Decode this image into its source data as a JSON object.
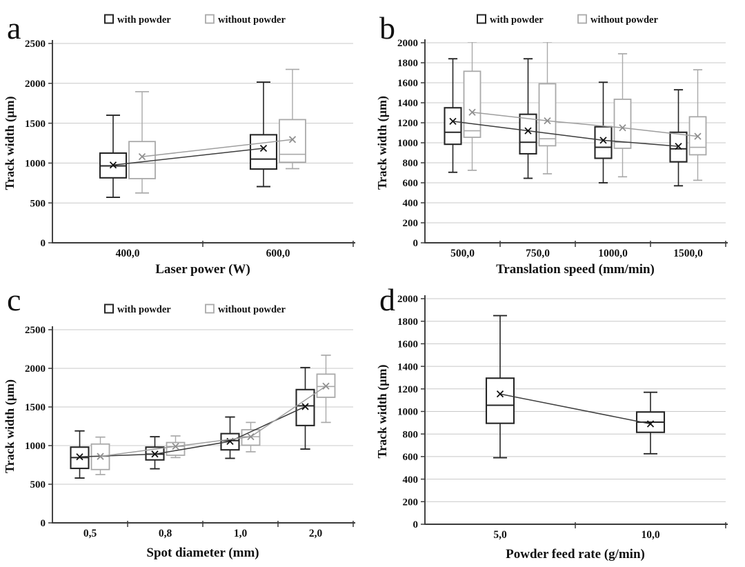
{
  "figure": {
    "background": "#ffffff",
    "grid_color": "#c8c8c8",
    "axis_color": "#3a3a3a",
    "series_colors": {
      "with_powder": "#262626",
      "without_powder": "#a9a9a9"
    }
  },
  "chart_data": [
    {
      "panel": "a",
      "type": "boxplot",
      "xlabel": "Laser power (W)",
      "ylabel": "Track width (µm)",
      "ylim": [
        0,
        2500
      ],
      "ytick_step": 500,
      "grid": true,
      "legend_position": "top-center",
      "categories": [
        "400,0",
        "600,0"
      ],
      "legend": [
        {
          "label": "with powder",
          "color": "#262626"
        },
        {
          "label": "without powder",
          "color": "#a9a9a9"
        }
      ],
      "series": [
        {
          "name": "with powder",
          "color": "#262626",
          "boxes": [
            {
              "min": 570,
              "q1": 815,
              "median": 965,
              "q3": 1125,
              "max": 1600,
              "mean": 975
            },
            {
              "min": 705,
              "q1": 925,
              "median": 1050,
              "q3": 1355,
              "max": 2015,
              "mean": 1185
            }
          ]
        },
        {
          "name": "without powder",
          "color": "#a9a9a9",
          "boxes": [
            {
              "min": 625,
              "q1": 805,
              "median": 1000,
              "q3": 1270,
              "max": 1895,
              "mean": 1080
            },
            {
              "min": 930,
              "q1": 1010,
              "median": 1110,
              "q3": 1545,
              "max": 2175,
              "mean": 1295
            }
          ]
        }
      ]
    },
    {
      "panel": "b",
      "type": "boxplot",
      "xlabel": "Translation speed (mm/min)",
      "ylabel": "Track width (µm)",
      "ylim": [
        0,
        2000
      ],
      "ytick_step": 200,
      "grid": true,
      "legend_position": "top-center",
      "categories": [
        "500,0",
        "750,0",
        "1000,0",
        "1500,0"
      ],
      "legend": [
        {
          "label": "with powder",
          "color": "#262626"
        },
        {
          "label": "without powder",
          "color": "#a9a9a9"
        }
      ],
      "series": [
        {
          "name": "with powder",
          "color": "#262626",
          "boxes": [
            {
              "min": 705,
              "q1": 985,
              "median": 1105,
              "q3": 1350,
              "max": 1840,
              "mean": 1215
            },
            {
              "min": 645,
              "q1": 890,
              "median": 1005,
              "q3": 1285,
              "max": 1840,
              "mean": 1120
            },
            {
              "min": 600,
              "q1": 845,
              "median": 955,
              "q3": 1160,
              "max": 1605,
              "mean": 1025
            },
            {
              "min": 570,
              "q1": 810,
              "median": 940,
              "q3": 1105,
              "max": 1530,
              "mean": 965
            }
          ]
        },
        {
          "name": "without powder",
          "color": "#a9a9a9",
          "boxes": [
            {
              "min": 725,
              "q1": 1055,
              "median": 1120,
              "q3": 1715,
              "max": 2010,
              "mean": 1305
            },
            {
              "min": 690,
              "q1": 970,
              "median": 1040,
              "q3": 1590,
              "max": 2010,
              "mean": 1220
            },
            {
              "min": 660,
              "q1": 945,
              "median": 1005,
              "q3": 1435,
              "max": 1890,
              "mean": 1150
            },
            {
              "min": 625,
              "q1": 880,
              "median": 955,
              "q3": 1260,
              "max": 1730,
              "mean": 1065
            }
          ]
        }
      ]
    },
    {
      "panel": "c",
      "type": "boxplot",
      "xlabel": "Spot diameter (mm)",
      "ylabel": "Track width (µm)",
      "ylim": [
        0,
        2500
      ],
      "ytick_step": 500,
      "grid": true,
      "legend_position": "top-center",
      "categories": [
        "0,5",
        "0,8",
        "1,0",
        "2,0"
      ],
      "legend": [
        {
          "label": "with powder",
          "color": "#262626"
        },
        {
          "label": "without powder",
          "color": "#a9a9a9"
        }
      ],
      "series": [
        {
          "name": "with powder",
          "color": "#262626",
          "boxes": [
            {
              "min": 580,
              "q1": 705,
              "median": 845,
              "q3": 980,
              "max": 1190,
              "mean": 855
            },
            {
              "min": 700,
              "q1": 815,
              "median": 890,
              "q3": 980,
              "max": 1115,
              "mean": 890
            },
            {
              "min": 835,
              "q1": 945,
              "median": 1065,
              "q3": 1155,
              "max": 1370,
              "mean": 1055
            },
            {
              "min": 955,
              "q1": 1260,
              "median": 1515,
              "q3": 1725,
              "max": 2010,
              "mean": 1505
            }
          ]
        },
        {
          "name": "without powder",
          "color": "#a9a9a9",
          "boxes": [
            {
              "min": 625,
              "q1": 690,
              "median": 860,
              "q3": 1020,
              "max": 1110,
              "mean": 860
            },
            {
              "min": 845,
              "q1": 875,
              "median": 990,
              "q3": 1040,
              "max": 1125,
              "mean": 990
            },
            {
              "min": 920,
              "q1": 1005,
              "median": 1115,
              "q3": 1205,
              "max": 1300,
              "mean": 1115
            },
            {
              "min": 1300,
              "q1": 1625,
              "median": 1765,
              "q3": 1925,
              "max": 2170,
              "mean": 1770
            }
          ]
        }
      ]
    },
    {
      "panel": "d",
      "type": "boxplot",
      "xlabel": "Powder feed rate (g/min)",
      "ylabel": "Track width (µm)",
      "ylim": [
        0,
        2000
      ],
      "ytick_step": 200,
      "grid": true,
      "legend_position": "none",
      "categories": [
        "5,0",
        "10,0"
      ],
      "legend": [],
      "series": [
        {
          "name": "with powder",
          "color": "#262626",
          "boxes": [
            {
              "min": 590,
              "q1": 895,
              "median": 1055,
              "q3": 1295,
              "max": 1850,
              "mean": 1155
            },
            {
              "min": 625,
              "q1": 815,
              "median": 905,
              "q3": 995,
              "max": 1170,
              "mean": 890
            }
          ]
        }
      ]
    }
  ]
}
